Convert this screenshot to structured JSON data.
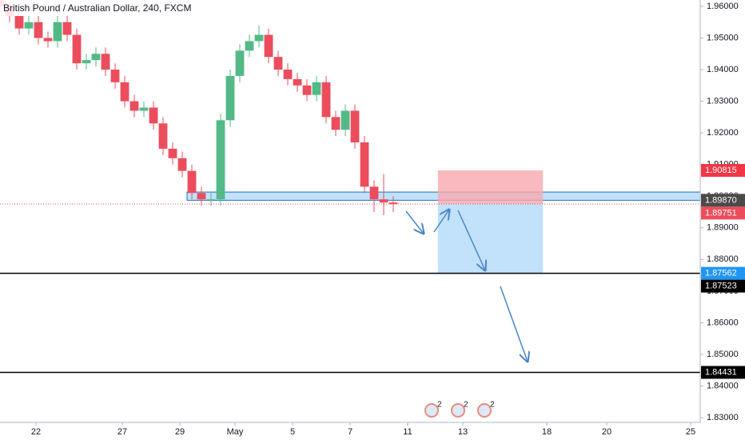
{
  "chart_data": {
    "type": "candlestick",
    "title": "British Pound / Australian Dollar, 240, FXCM",
    "x": [
      0,
      2,
      4,
      6,
      8,
      10,
      12,
      14,
      16,
      18,
      20,
      22,
      24,
      26,
      28,
      30,
      32,
      34,
      36,
      38,
      40,
      42,
      44,
      46,
      48,
      50,
      52,
      54,
      56,
      58,
      60,
      62,
      64,
      66,
      68,
      70,
      72,
      74,
      76,
      78,
      80,
      82
    ],
    "open": [
      1.962,
      1.96,
      1.957,
      1.953,
      1.955,
      1.95,
      1.949,
      1.955,
      1.951,
      1.942,
      1.943,
      1.945,
      1.94,
      1.936,
      1.93,
      1.927,
      1.928,
      1.923,
      1.915,
      1.912,
      1.908,
      1.901,
      1.899,
      1.899,
      1.924,
      1.938,
      1.946,
      1.949,
      1.951,
      1.944,
      1.94,
      1.937,
      1.935,
      1.932,
      1.936,
      1.925,
      1.921,
      1.927,
      1.917,
      1.903,
      1.899,
      1.898
    ],
    "high": [
      1.964,
      1.962,
      1.959,
      1.957,
      1.957,
      1.952,
      1.957,
      1.957,
      1.953,
      1.945,
      1.947,
      1.947,
      1.942,
      1.938,
      1.932,
      1.93,
      1.93,
      1.925,
      1.917,
      1.914,
      1.91,
      1.903,
      1.901,
      1.926,
      1.94,
      1.948,
      1.951,
      1.954,
      1.953,
      1.946,
      1.942,
      1.939,
      1.937,
      1.938,
      1.938,
      1.927,
      1.929,
      1.929,
      1.919,
      1.905,
      1.907,
      1.9
    ],
    "low": [
      1.958,
      1.955,
      1.951,
      1.951,
      1.948,
      1.947,
      1.947,
      1.949,
      1.94,
      1.94,
      1.941,
      1.938,
      1.934,
      1.928,
      1.925,
      1.925,
      1.921,
      1.913,
      1.91,
      1.906,
      1.899,
      1.897,
      1.897,
      1.897,
      1.922,
      1.936,
      1.944,
      1.947,
      1.942,
      1.938,
      1.935,
      1.933,
      1.93,
      1.93,
      1.923,
      1.919,
      1.919,
      1.915,
      1.901,
      1.895,
      1.894,
      1.895
    ],
    "close": [
      1.96,
      1.957,
      1.953,
      1.955,
      1.95,
      1.949,
      1.955,
      1.951,
      1.942,
      1.943,
      1.945,
      1.94,
      1.936,
      1.93,
      1.927,
      1.928,
      1.923,
      1.915,
      1.912,
      1.908,
      1.901,
      1.899,
      1.899,
      1.924,
      1.938,
      1.946,
      1.949,
      1.951,
      1.944,
      1.94,
      1.937,
      1.935,
      1.932,
      1.936,
      1.925,
      1.921,
      1.927,
      1.917,
      1.903,
      1.899,
      1.898,
      1.8975
    ],
    "up_color": "#53b987",
    "down_color": "#eb4d5c",
    "xlim": [
      0,
      146
    ],
    "ylim": [
      1.8285,
      1.962
    ],
    "yticks": [
      {
        "value": 1.96,
        "label": "1.96000"
      },
      {
        "value": 1.95,
        "label": "1.95000"
      },
      {
        "value": 1.94,
        "label": "1.94000"
      },
      {
        "value": 1.93,
        "label": "1.93000"
      },
      {
        "value": 1.92,
        "label": "1.92000"
      },
      {
        "value": 1.91,
        "label": "1.91000"
      },
      {
        "value": 1.9,
        "label": "1.90000"
      },
      {
        "value": 1.89,
        "label": "1.89000"
      },
      {
        "value": 1.88,
        "label": "1.88000"
      },
      {
        "value": 1.87,
        "label": "1.87000"
      },
      {
        "value": 1.86,
        "label": "1.86000"
      },
      {
        "value": 1.85,
        "label": "1.85000"
      },
      {
        "value": 1.84,
        "label": "1.84000"
      },
      {
        "value": 1.83,
        "label": "1.83000"
      }
    ],
    "xticks": [
      {
        "value": 7.5,
        "label": "22"
      },
      {
        "value": 25.5,
        "label": "27"
      },
      {
        "value": 37.5,
        "label": "29"
      },
      {
        "value": 49,
        "label": "May"
      },
      {
        "value": 61,
        "label": "5"
      },
      {
        "value": 73,
        "label": "7"
      },
      {
        "value": 85,
        "label": "11"
      },
      {
        "value": 96.5,
        "label": "13"
      },
      {
        "value": 114,
        "label": "18"
      },
      {
        "value": 126.5,
        "label": "20"
      },
      {
        "value": 144,
        "label": "25"
      }
    ],
    "price_tags": [
      {
        "value": 1.90815,
        "label": "1.90815",
        "color": "#f23645",
        "line": "none"
      },
      {
        "value": 1.8987,
        "label": "1.89870",
        "color": "#4a4a4a",
        "line": "none"
      },
      {
        "value": 1.89751,
        "label": "1.89751",
        "color": "#eb4d5c",
        "line": "dotted"
      },
      {
        "value": 1.87562,
        "label": "1.87562",
        "color": "#2196f3",
        "line": "solid"
      },
      {
        "value": 1.87523,
        "label": "1.87523",
        "color": "#000000",
        "line": "none"
      },
      {
        "value": 1.84431,
        "label": "1.84431",
        "color": "#000000",
        "line": "solid"
      }
    ],
    "support_zone": {
      "from": 1.8987,
      "to": 1.9013,
      "x": [
        39,
        146
      ],
      "color": "#90caf9"
    },
    "position": {
      "stop": 1.90815,
      "entry": 1.89751,
      "target": 1.87562,
      "x": [
        91.3,
        113.2
      ]
    },
    "events": [
      {
        "x": 90,
        "label": "2"
      },
      {
        "x": 95.5,
        "label": "2"
      },
      {
        "x": 101,
        "label": "2"
      }
    ]
  }
}
